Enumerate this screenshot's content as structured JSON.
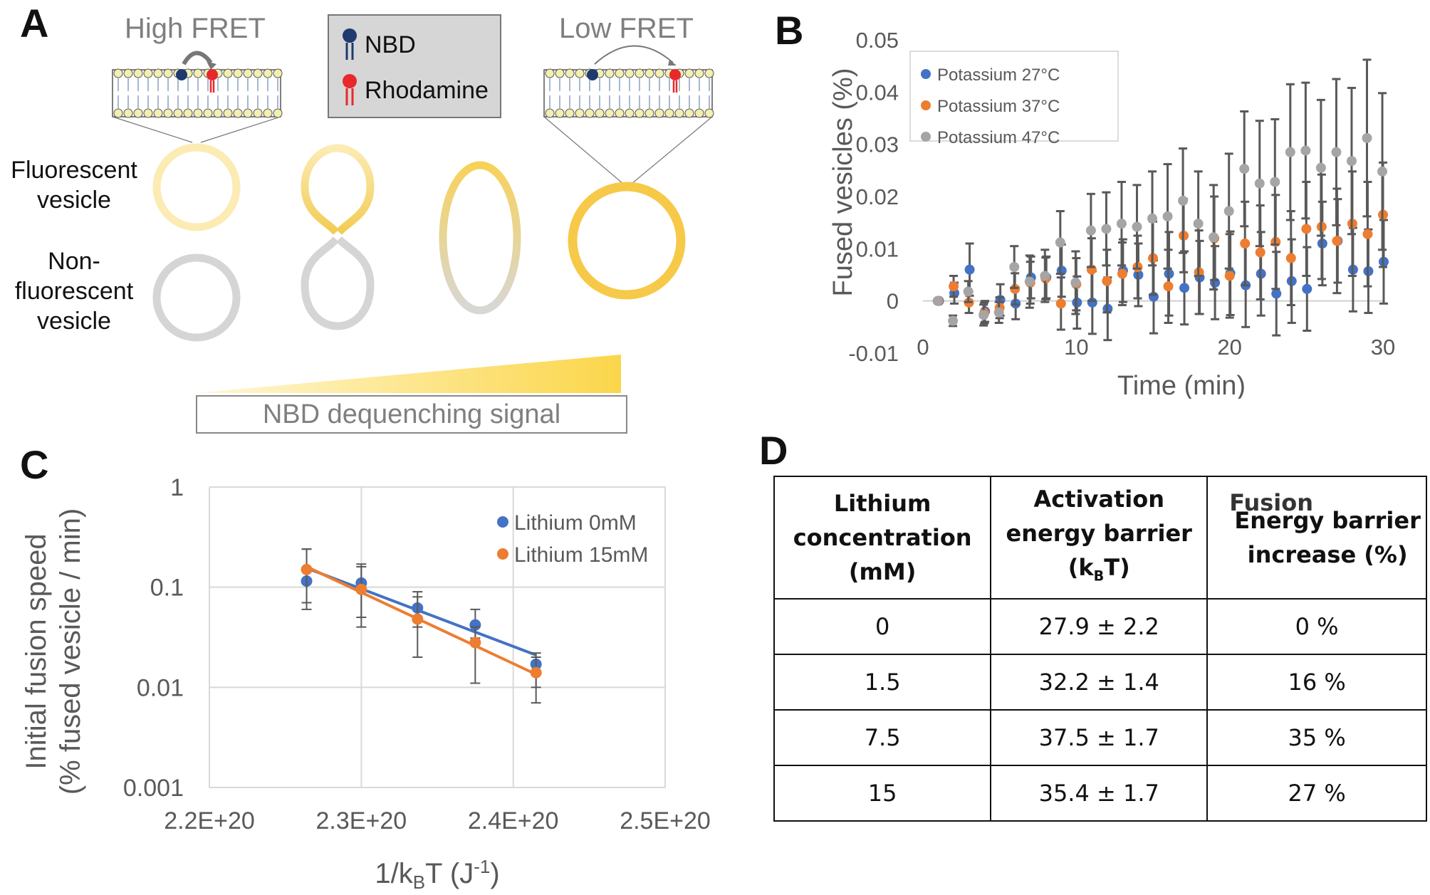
{
  "panelA": {
    "letter": "A",
    "high_fret": "High FRET",
    "low_fret": "Low FRET",
    "legend": {
      "nbd": "NBD",
      "rhodamine": "Rhodamine"
    },
    "fluorescent_label": "Fluorescent\nvesicle",
    "nonfluorescent_label": "Non-\nfluorescent\nvesicle",
    "dequench_label": "NBD dequenching signal",
    "colors": {
      "nbd_head": "#1f3a6e",
      "rhodamine_head": "#e8282a",
      "lipid_head": "#f2efb0",
      "gold": "#f7c948",
      "gray": "#d5d5d5"
    }
  },
  "panelB": {
    "letter": "B"
  },
  "panelC": {
    "letter": "C"
  },
  "panelD": {
    "letter": "D",
    "headers": [
      "Lithium concentration (mM)",
      "Activation energy barrier (kBT)",
      "Energy barrier increase (%)"
    ],
    "header_B_main": "Activation energy barrier (k",
    "header_B_sub": "B",
    "header_B_end": "T)",
    "header_C_overlap": "Fusion",
    "rows": [
      [
        "0",
        "27.9 ± 2.2",
        "0 %"
      ],
      [
        "1.5",
        "32.2 ± 1.4",
        "16 %"
      ],
      [
        "7.5",
        "37.5 ± 1.7",
        "35 %"
      ],
      [
        "15",
        "35.4 ± 1.7",
        "27 %"
      ]
    ]
  },
  "chart_data": [
    {
      "type": "scatter",
      "panel": "B",
      "xlabel": "Time (min)",
      "ylabel": "Fused vesicles (%)",
      "xlim": [
        0,
        30
      ],
      "ylim": [
        -0.01,
        0.05
      ],
      "xticks": [
        "0",
        "10",
        "20",
        "30"
      ],
      "yticks": [
        "-0.01",
        "0",
        "0.01",
        "0.02",
        "0.03",
        "0.04",
        "0.05"
      ],
      "legend_position": "top-left",
      "series": [
        {
          "name": "Potassium 27°C",
          "color": "#4472c4",
          "x": [
            1,
            2,
            3,
            4,
            5,
            6,
            7,
            8,
            9,
            10,
            11,
            12,
            13,
            14,
            15,
            16,
            17,
            18,
            19,
            20,
            21,
            22,
            23,
            24,
            25,
            26,
            27,
            28,
            29,
            30
          ],
          "y": [
            0,
            0.0015,
            0.006,
            -0.002,
            0.0002,
            -0.0005,
            0.0045,
            0.0045,
            0.0058,
            -0.0003,
            -0.0003,
            -0.0015,
            0.0058,
            0.005,
            0.0008,
            0.0052,
            0.0025,
            0.0045,
            0.0035,
            0.0053,
            0.003,
            0.0052,
            0.0014,
            0.0038,
            0.0023,
            0.011,
            0.0115,
            0.006,
            0.0057,
            0.0075
          ],
          "err": [
            0,
            0.002,
            0.005,
            0.002,
            0.003,
            0.003,
            0.004,
            0.004,
            0.005,
            0.005,
            0.006,
            0.006,
            0.006,
            0.006,
            0.007,
            0.008,
            0.007,
            0.007,
            0.007,
            0.008,
            0.008,
            0.008,
            0.008,
            0.008,
            0.008,
            0.008,
            0.008,
            0.008,
            0.008,
            0.008
          ]
        },
        {
          "name": "Potassium 37°C",
          "color": "#ed7d31",
          "x": [
            1,
            2,
            3,
            4,
            5,
            6,
            7,
            8,
            9,
            10,
            11,
            12,
            13,
            14,
            15,
            16,
            17,
            18,
            19,
            20,
            21,
            22,
            23,
            24,
            25,
            26,
            27,
            28,
            29,
            30
          ],
          "y": [
            0,
            0.0028,
            -0.0003,
            -0.0023,
            -0.0013,
            0.0023,
            0.0035,
            0.0043,
            -0.0005,
            0.0032,
            0.006,
            0.0038,
            0.0052,
            0.0065,
            0.0082,
            0.0028,
            0.0125,
            0.0055,
            0.012,
            0.0048,
            0.011,
            0.0093,
            0.0113,
            0.0082,
            0.0138,
            0.0142,
            0.0115,
            0.0148,
            0.0128,
            0.0165
          ],
          "err": [
            0,
            0.002,
            0.002,
            0.002,
            0.002,
            0.003,
            0.004,
            0.004,
            0.005,
            0.005,
            0.006,
            0.006,
            0.006,
            0.006,
            0.007,
            0.007,
            0.007,
            0.008,
            0.008,
            0.008,
            0.008,
            0.009,
            0.009,
            0.009,
            0.009,
            0.01,
            0.01,
            0.01,
            0.01,
            0.01
          ]
        },
        {
          "name": "Potassium 47°C",
          "color": "#a5a5a5",
          "x": [
            1,
            2,
            3,
            4,
            5,
            6,
            7,
            8,
            9,
            10,
            11,
            12,
            13,
            14,
            15,
            16,
            17,
            18,
            19,
            20,
            21,
            22,
            23,
            24,
            25,
            26,
            27,
            28,
            29,
            30
          ],
          "y": [
            0,
            -0.0038,
            0.0018,
            -0.0027,
            -0.0022,
            0.0065,
            0.0037,
            0.0048,
            0.0112,
            0.0035,
            0.0135,
            0.0138,
            0.0148,
            0.0142,
            0.0158,
            0.0162,
            0.0192,
            0.0148,
            0.0122,
            0.0172,
            0.0253,
            0.0225,
            0.0228,
            0.0285,
            0.0288,
            0.0255,
            0.0285,
            0.0268,
            0.0312,
            0.0248
          ],
          "err": [
            0,
            0.001,
            0.002,
            0.002,
            0.002,
            0.004,
            0.005,
            0.005,
            0.006,
            0.006,
            0.007,
            0.007,
            0.008,
            0.008,
            0.009,
            0.01,
            0.01,
            0.01,
            0.01,
            0.011,
            0.011,
            0.012,
            0.012,
            0.013,
            0.013,
            0.013,
            0.014,
            0.014,
            0.015,
            0.015
          ]
        }
      ]
    },
    {
      "type": "scatter",
      "panel": "C",
      "xlabel": "1/kBT (J-1)",
      "xlabel_main": "1/k",
      "xlabel_sub": "B",
      "xlabel_mid": "T (J",
      "xlabel_sup": "-1",
      "xlabel_end": ")",
      "ylabel_line1": "Initial fusion speed",
      "ylabel_line2": "(% fused vesicle / min)",
      "yscale": "log",
      "xlim": [
        2.2e+20,
        2.5e+20
      ],
      "ylim": [
        0.001,
        1
      ],
      "xticks": [
        "2.2E+20",
        "2.3E+20",
        "2.4E+20",
        "2.5E+20"
      ],
      "yticks": [
        "0.001",
        "0.01",
        "0.1",
        "1"
      ],
      "legend_position": "top-right",
      "series": [
        {
          "name": "Lithium 0mM",
          "color": "#4472c4",
          "x": [
            2.264e+20,
            2.3e+20,
            2.337e+20,
            2.375e+20,
            2.415e+20
          ],
          "y": [
            0.115,
            0.11,
            0.062,
            0.042,
            0.017
          ],
          "err_low": [
            0.06,
            0.05,
            0.04,
            0.031,
            0.01
          ],
          "err_high": [
            0.24,
            0.17,
            0.09,
            0.06,
            0.022
          ],
          "trend": [
            [
              2.264e+20,
              0.155
            ],
            [
              2.415e+20,
              0.021
            ]
          ]
        },
        {
          "name": "Lithium 15mM",
          "color": "#ed7d31",
          "x": [
            2.264e+20,
            2.3e+20,
            2.337e+20,
            2.375e+20,
            2.415e+20
          ],
          "y": [
            0.15,
            0.095,
            0.048,
            0.028,
            0.014
          ],
          "err_low": [
            0.07,
            0.04,
            0.02,
            0.011,
            0.007
          ],
          "err_high": [
            0.24,
            0.16,
            0.08,
            0.04,
            0.02
          ],
          "trend": [
            [
              2.264e+20,
              0.16
            ],
            [
              2.415e+20,
              0.0135
            ]
          ]
        }
      ]
    }
  ]
}
